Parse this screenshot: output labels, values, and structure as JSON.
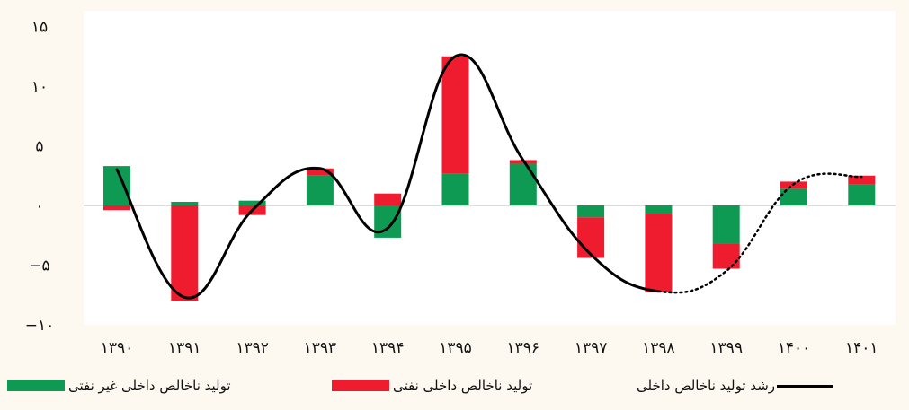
{
  "chart_data": {
    "type": "bar",
    "subtype": "stacked-bar-with-line",
    "categories": [
      "۱۳۹۰",
      "۱۳۹۱",
      "۱۳۹۲",
      "۱۳۹۳",
      "۱۳۹۴",
      "۱۳۹۵",
      "۱۳۹۶",
      "۱۳۹۷",
      "۱۳۹۸",
      "۱۳۹۹",
      "۱۴۰۰",
      "۱۴۰۱"
    ],
    "series": [
      {
        "name": "تولید ناخالص داخلی غیر نفتی",
        "type": "bar",
        "color": "#0e9a52",
        "values": [
          3.3,
          0.3,
          0.4,
          2.5,
          -2.7,
          2.7,
          3.5,
          -1.0,
          -0.7,
          -3.2,
          1.4,
          1.8
        ]
      },
      {
        "name": "تولید ناخالص داخلی نفتی",
        "type": "bar",
        "color": "#ee1c2e",
        "values": [
          -0.4,
          -8.0,
          -0.8,
          0.6,
          1.0,
          9.8,
          0.3,
          -3.4,
          -6.6,
          -2.1,
          0.6,
          0.7
        ]
      },
      {
        "name": "رشد تولید ناخالص داخلی",
        "type": "line",
        "color": "#000000",
        "values": [
          3.0,
          -7.7,
          -0.4,
          3.1,
          -1.9,
          12.5,
          3.8,
          -4.1,
          -7.2,
          -5.5,
          1.8,
          2.4
        ],
        "dotted_from_index": 8
      }
    ],
    "y_ticks": [
      "۱۵",
      "۱۰",
      "۵",
      "۰",
      "−۵",
      "−۱۰"
    ],
    "y_tick_values": [
      15,
      10,
      5,
      0,
      -5,
      -10
    ],
    "ylim": [
      -10,
      15
    ],
    "title": "",
    "xlabel": "",
    "ylabel": "",
    "grid": false,
    "legend_position": "bottom"
  },
  "colors": {
    "background": "#fdf8f0",
    "plot_background": "#ffffff",
    "non_oil": "#0e9a52",
    "oil": "#ee1c2e",
    "line": "#000000"
  }
}
